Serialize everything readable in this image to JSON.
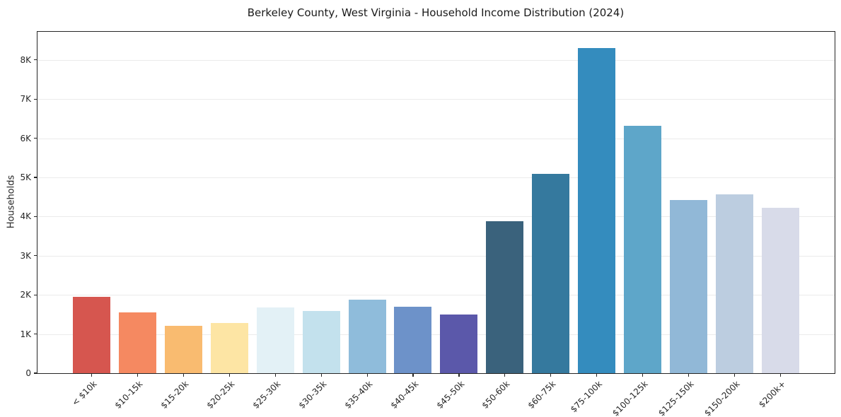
{
  "chart_data": {
    "type": "bar",
    "title": "Berkeley County, West Virginia - Household Income Distribution (2024)",
    "xlabel": "",
    "ylabel": "Households",
    "categories": [
      "< $10k",
      "$10-15k",
      "$15-20k",
      "$20-25k",
      "$25-30k",
      "$30-35k",
      "$35-40k",
      "$40-45k",
      "$45-50k",
      "$50-60k",
      "$60-75k",
      "$75-100k",
      "$100-125k",
      "$125-150k",
      "$150-200k",
      "$200k+"
    ],
    "values": [
      1950,
      1550,
      1210,
      1290,
      1680,
      1580,
      1880,
      1700,
      1500,
      3890,
      5100,
      8300,
      6320,
      4430,
      4570,
      4220
    ],
    "bar_colors": [
      "#d6564f",
      "#f58961",
      "#f9bb70",
      "#fde5a4",
      "#e3f1f6",
      "#c3e1ed",
      "#8fbcdb",
      "#6d92c9",
      "#5b58aa",
      "#3a627c",
      "#35799e",
      "#348cbe",
      "#5ea6c9",
      "#91b8d7",
      "#bccde0",
      "#d8dbe9"
    ],
    "ylim": [
      0,
      8720
    ],
    "yticks": [
      {
        "value": 0,
        "label": "0"
      },
      {
        "value": 1000,
        "label": "1K"
      },
      {
        "value": 2000,
        "label": "2K"
      },
      {
        "value": 3000,
        "label": "3K"
      },
      {
        "value": 4000,
        "label": "4K"
      },
      {
        "value": 5000,
        "label": "5K"
      },
      {
        "value": 6000,
        "label": "6K"
      },
      {
        "value": 7000,
        "label": "7K"
      },
      {
        "value": 8000,
        "label": "8K"
      }
    ],
    "grid": true,
    "legend": "none",
    "grid_color": "#ebebeb",
    "spine_color": "#262626",
    "text_color": "#262626",
    "background": "#ffffff"
  }
}
